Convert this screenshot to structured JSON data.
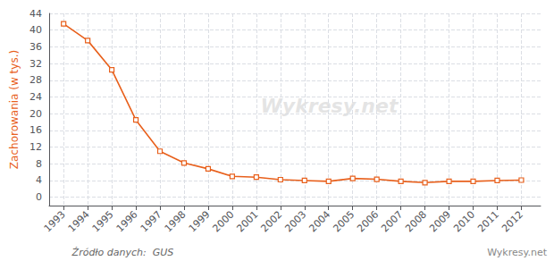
{
  "chart_data": {
    "type": "line",
    "ylabel": "Zachorowania (w tys.)",
    "x": [
      1993,
      1994,
      1995,
      1996,
      1997,
      1998,
      1999,
      2000,
      2001,
      2002,
      2003,
      2004,
      2005,
      2006,
      2007,
      2008,
      2009,
      2010,
      2011,
      2012
    ],
    "values": [
      41.5,
      37.5,
      30.5,
      18.5,
      11.0,
      8.2,
      6.8,
      5.0,
      4.8,
      4.2,
      4.0,
      3.8,
      4.5,
      4.3,
      3.8,
      3.5,
      3.8,
      3.8,
      4.0,
      4.1
    ],
    "color": "#e8601c",
    "marker": "square",
    "xlim": [
      1992.4,
      2012.8
    ],
    "xticks": [
      1993,
      1994,
      1995,
      1996,
      1997,
      1998,
      1999,
      2000,
      2001,
      2002,
      2003,
      2004,
      2005,
      2006,
      2007,
      2008,
      2009,
      2010,
      2011,
      2012
    ],
    "ylim": [
      -2,
      44
    ],
    "yticks": [
      0,
      4,
      8,
      12,
      16,
      20,
      24,
      28,
      32,
      36,
      40,
      44
    ],
    "grid": true,
    "source": "Źródło danych:  GUS",
    "watermark": "Wykresy.net"
  }
}
